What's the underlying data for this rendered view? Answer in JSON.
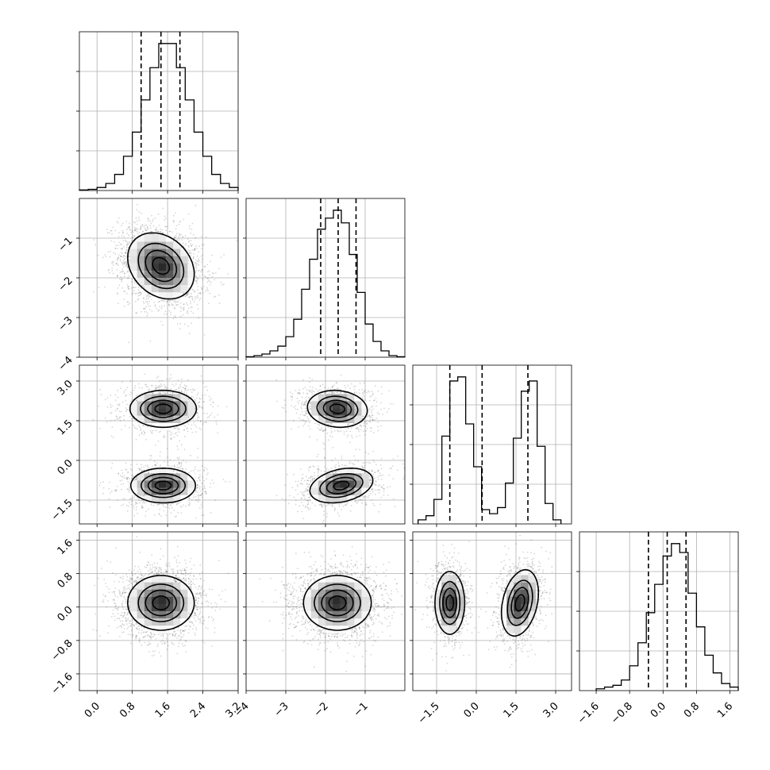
{
  "chart_data": {
    "type": "corner",
    "parameters": [
      {
        "range": [
          -0.4,
          3.2
        ],
        "ticks": [
          0.0,
          0.8,
          1.6,
          2.4,
          3.2
        ],
        "tick_labels": [
          "0.0",
          "0.8",
          "1.6",
          "2.4",
          "3.2"
        ],
        "quantiles": [
          1.0,
          1.45,
          1.88
        ],
        "hist": {
          "edges": [
            -0.4,
            -0.2,
            0.0,
            0.2,
            0.4,
            0.6,
            0.8,
            1.0,
            1.2,
            1.4,
            1.6,
            1.8,
            2.0,
            2.2,
            2.4,
            2.6,
            2.8,
            3.0,
            3.2
          ],
          "counts": [
            0.3,
            0.6,
            1.5,
            3.5,
            8,
            17,
            29,
            45,
            61,
            73,
            73,
            61,
            45,
            29,
            17,
            8,
            3.5,
            1.5
          ]
        }
      },
      {
        "range": [
          -4.0,
          0.0
        ],
        "ticks": [
          -4,
          -3,
          -2,
          -1
        ],
        "tick_labels": [
          "−4",
          "−3",
          "−2",
          "−1"
        ],
        "quantiles": [
          -2.12,
          -1.68,
          -1.23
        ],
        "hist": {
          "edges": [
            -4.0,
            -3.8,
            -3.6,
            -3.4,
            -3.2,
            -3.0,
            -2.8,
            -2.6,
            -2.4,
            -2.2,
            -2.0,
            -1.8,
            -1.6,
            -1.4,
            -1.2,
            -1.0,
            -0.8,
            -0.6,
            -0.4,
            -0.2,
            0.0
          ],
          "counts": [
            0.3,
            1,
            2,
            4,
            7,
            13,
            24,
            43,
            62,
            81,
            88,
            93,
            85,
            65,
            41,
            21,
            10,
            4,
            1,
            0.3
          ]
        }
      },
      {
        "range": [
          -2.4,
          3.6
        ],
        "ticks": [
          -1.5,
          0.0,
          1.5,
          3.0
        ],
        "tick_labels": [
          "−1.5",
          "0.0",
          "1.5",
          "3.0"
        ],
        "quantiles": [
          -1.0,
          0.22,
          1.95
        ],
        "hist": {
          "edges": [
            -2.2,
            -1.9,
            -1.6,
            -1.3,
            -1.0,
            -0.7,
            -0.4,
            -0.1,
            0.2,
            0.5,
            0.8,
            1.1,
            1.4,
            1.7,
            2.0,
            2.3,
            2.6,
            2.9,
            3.2
          ],
          "counts": [
            2,
            4,
            12,
            43,
            70,
            72,
            49,
            28,
            7,
            5,
            8,
            20,
            42,
            65,
            70,
            38,
            10,
            2
          ]
        }
      },
      {
        "range": [
          -2.0,
          1.8
        ],
        "ticks": [
          -1.6,
          -0.8,
          0.0,
          0.8,
          1.6
        ],
        "tick_labels": [
          "−1.6",
          "−0.8",
          "0.0",
          "0.8",
          "1.6"
        ],
        "quantiles": [
          -0.35,
          0.1,
          0.55
        ],
        "hist": {
          "edges": [
            -1.6,
            -1.4,
            -1.2,
            -1.0,
            -0.8,
            -0.6,
            -0.4,
            -0.2,
            0.0,
            0.2,
            0.4,
            0.6,
            0.8,
            1.0,
            1.2,
            1.4,
            1.6,
            1.8
          ],
          "counts": [
            1,
            2,
            3,
            6,
            14,
            27,
            44,
            60,
            76,
            83,
            78,
            55,
            36,
            20,
            10,
            4,
            2
          ]
        }
      }
    ],
    "joint": [
      {
        "row": 1,
        "col": 0,
        "blobs": [
          {
            "mx": 1.45,
            "my": -1.7,
            "sx": 0.38,
            "sy": 0.42,
            "rho": -0.25
          }
        ]
      },
      {
        "row": 2,
        "col": 0,
        "blobs": [
          {
            "mx": 1.5,
            "my": 1.95,
            "sx": 0.38,
            "sy": 0.35,
            "rho": 0.0
          },
          {
            "mx": 1.5,
            "my": -0.95,
            "sx": 0.37,
            "sy": 0.33,
            "rho": 0.0
          }
        ]
      },
      {
        "row": 2,
        "col": 1,
        "blobs": [
          {
            "mx": -1.7,
            "my": 1.95,
            "sx": 0.38,
            "sy": 0.35,
            "rho": -0.1
          },
          {
            "mx": -1.6,
            "my": -0.95,
            "sx": 0.4,
            "sy": 0.33,
            "rho": 0.3
          }
        ]
      },
      {
        "row": 3,
        "col": 0,
        "blobs": [
          {
            "mx": 1.45,
            "my": 0.1,
            "sx": 0.38,
            "sy": 0.33,
            "rho": 0.0
          }
        ]
      },
      {
        "row": 3,
        "col": 1,
        "blobs": [
          {
            "mx": -1.7,
            "my": 0.1,
            "sx": 0.43,
            "sy": 0.33,
            "rho": 0.0
          }
        ]
      },
      {
        "row": 3,
        "col": 2,
        "blobs": [
          {
            "mx": -1.0,
            "my": 0.1,
            "sx": 0.28,
            "sy": 0.38,
            "rho": 0.0
          },
          {
            "mx": 1.65,
            "my": 0.1,
            "sx": 0.35,
            "sy": 0.4,
            "rho": 0.3
          }
        ]
      }
    ],
    "grid": true,
    "xlabel": "",
    "ylabel": ""
  }
}
